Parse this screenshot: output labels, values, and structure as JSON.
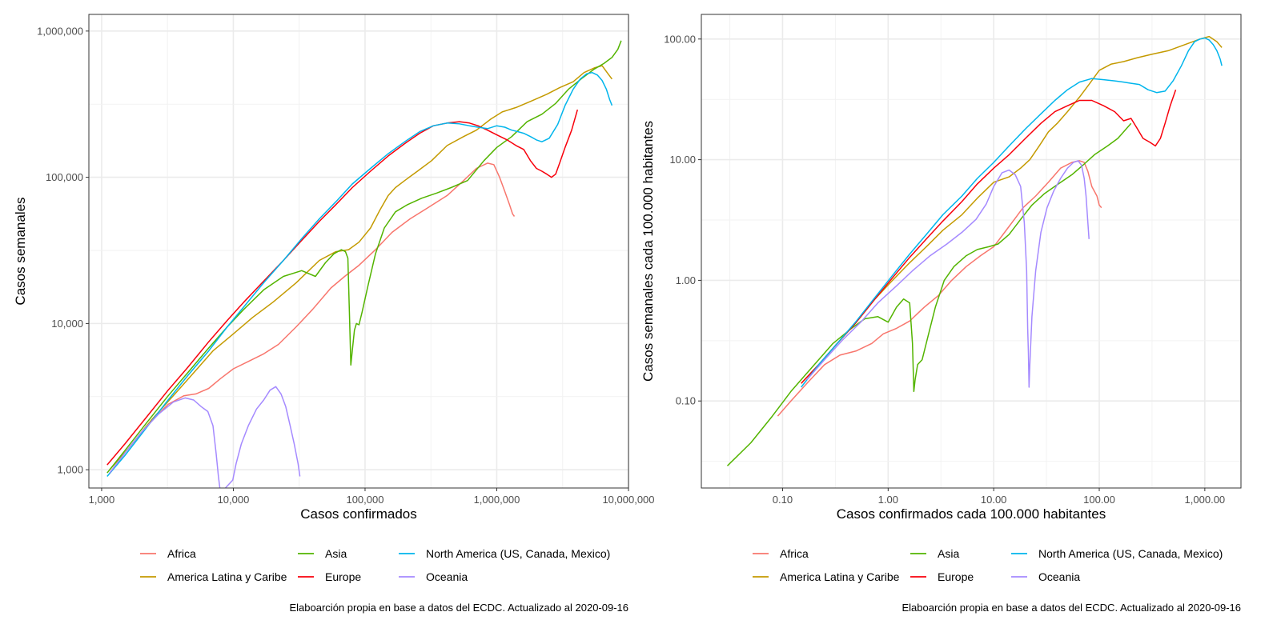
{
  "chart_data": [
    {
      "type": "line",
      "xlabel": "Casos confirmados",
      "ylabel": "Casos semanales",
      "x_scale": "log",
      "y_scale": "log",
      "xlim": [
        800,
        10000000
      ],
      "ylim": [
        750,
        1300000
      ],
      "x_ticks": [
        1000,
        10000,
        100000,
        1000000,
        10000000
      ],
      "x_tick_labels": [
        "1,000",
        "10,000",
        "100,000",
        "1,000,000",
        "10,000,000"
      ],
      "y_ticks": [
        1000,
        10000,
        100000,
        1000000
      ],
      "y_tick_labels": [
        "1,000",
        "10,000",
        "100,000",
        "1,000,000"
      ],
      "grid": true,
      "legend_position": "bottom",
      "caption": "Elaboarción propia en base a datos del ECDC.  Actualizado al  2020-09-16",
      "series": [
        {
          "name": "Africa",
          "color": "#f8766d",
          "x": [
            1150,
            1500,
            2200,
            3200,
            4200,
            5200,
            6500,
            8000,
            10000,
            13000,
            17000,
            22000,
            30000,
            40000,
            55000,
            70000,
            90000,
            120000,
            160000,
            220000,
            300000,
            420000,
            560000,
            700000,
            850000,
            950000,
            1050000,
            1150000,
            1250000,
            1320000,
            1360000
          ],
          "y": [
            940,
            1300,
            2000,
            2800,
            3200,
            3300,
            3600,
            4200,
            4900,
            5500,
            6200,
            7200,
            9500,
            12500,
            17500,
            21000,
            25000,
            32000,
            42000,
            52000,
            62000,
            75000,
            95000,
            115000,
            125000,
            122000,
            100000,
            80000,
            65000,
            56000,
            54000
          ]
        },
        {
          "name": "America Latina y Caribe",
          "color": "#c49a00",
          "x": [
            1150,
            1600,
            2400,
            3600,
            5000,
            7000,
            10000,
            14000,
            20000,
            30000,
            45000,
            60000,
            75000,
            90000,
            110000,
            130000,
            150000,
            170000,
            200000,
            250000,
            320000,
            420000,
            560000,
            700000,
            900000,
            1100000,
            1400000,
            1800000,
            2400000,
            3000000,
            3800000,
            4600000,
            5500000,
            6300000,
            7000000,
            7500000
          ],
          "y": [
            1000,
            1400,
            2200,
            3300,
            4600,
            6500,
            8500,
            11000,
            14000,
            19000,
            27000,
            31000,
            32000,
            36000,
            45000,
            60000,
            75000,
            85000,
            95000,
            110000,
            130000,
            165000,
            190000,
            210000,
            250000,
            280000,
            300000,
            330000,
            370000,
            410000,
            450000,
            520000,
            560000,
            580000,
            510000,
            470000
          ]
        },
        {
          "name": "Asia",
          "color": "#53b400",
          "x": [
            1100,
            1500,
            2200,
            3200,
            4500,
            6500,
            9000,
            12000,
            17000,
            24000,
            33000,
            42000,
            50000,
            58000,
            66000,
            71000,
            74000,
            76000,
            78000,
            80000,
            83000,
            86000,
            90000,
            95000,
            105000,
            120000,
            140000,
            170000,
            210000,
            270000,
            350000,
            450000,
            600000,
            800000,
            1000000,
            1300000,
            1700000,
            2200000,
            2800000,
            3500000,
            4500000,
            5500000,
            6500000,
            7500000,
            8300000,
            8800000
          ],
          "y": [
            950,
            1350,
            2100,
            3200,
            4600,
            6800,
            9500,
            12500,
            17000,
            21000,
            23000,
            21000,
            26000,
            30000,
            32000,
            31000,
            28000,
            12000,
            5200,
            6500,
            9000,
            10000,
            9800,
            12000,
            18000,
            30000,
            45000,
            58000,
            65000,
            72000,
            78000,
            85000,
            95000,
            130000,
            160000,
            190000,
            240000,
            270000,
            320000,
            400000,
            480000,
            550000,
            600000,
            660000,
            750000,
            860000
          ]
        },
        {
          "name": "Europe",
          "color": "#f8000b",
          "x": [
            1100,
            1500,
            2200,
            3200,
            4500,
            6500,
            9000,
            12000,
            17000,
            24000,
            33000,
            45000,
            60000,
            80000,
            110000,
            150000,
            200000,
            260000,
            330000,
            420000,
            520000,
            620000,
            720000,
            850000,
            1000000,
            1200000,
            1400000,
            1600000,
            1800000,
            2000000,
            2200000,
            2400000,
            2600000,
            2800000,
            3000000,
            3300000,
            3700000,
            4100000
          ],
          "y": [
            1080,
            1500,
            2300,
            3500,
            5000,
            7500,
            10500,
            14000,
            19500,
            27000,
            37000,
            50000,
            65000,
            85000,
            110000,
            140000,
            170000,
            200000,
            225000,
            235000,
            240000,
            235000,
            225000,
            210000,
            195000,
            180000,
            165000,
            155000,
            130000,
            115000,
            110000,
            105000,
            100000,
            105000,
            125000,
            160000,
            210000,
            290000
          ]
        },
        {
          "name": "North America (US, Canada, Mexico)",
          "color": "#00b5ec",
          "x": [
            1100,
            1500,
            2200,
            3200,
            4500,
            6500,
            9000,
            12000,
            17000,
            24000,
            33000,
            45000,
            60000,
            80000,
            110000,
            150000,
            200000,
            260000,
            330000,
            420000,
            520000,
            620000,
            720000,
            850000,
            1000000,
            1150000,
            1300000,
            1450000,
            1600000,
            1800000,
            2000000,
            2200000,
            2500000,
            2900000,
            3300000,
            3800000,
            4300000,
            4800000,
            5300000,
            5800000,
            6300000,
            6800000,
            7200000,
            7500000
          ],
          "y": [
            900,
            1250,
            1950,
            3000,
            4400,
            6500,
            9500,
            13000,
            19000,
            27000,
            38000,
            52000,
            68000,
            90000,
            115000,
            145000,
            175000,
            205000,
            225000,
            235000,
            232000,
            225000,
            220000,
            215000,
            225000,
            220000,
            210000,
            205000,
            200000,
            190000,
            180000,
            175000,
            185000,
            230000,
            310000,
            400000,
            470000,
            510000,
            520000,
            500000,
            460000,
            400000,
            340000,
            310000
          ]
        },
        {
          "name": "Oceania",
          "color": "#a58aff",
          "x": [
            1150,
            1500,
            2000,
            2700,
            3500,
            4300,
            5000,
            5700,
            6400,
            7000,
            7400,
            7700,
            7900,
            8100,
            9900,
            10500,
            11500,
            13000,
            15000,
            17000,
            19000,
            21000,
            23000,
            25000,
            27000,
            29000,
            31000,
            32000
          ],
          "y": [
            950,
            1300,
            1800,
            2400,
            2900,
            3100,
            3000,
            2700,
            2500,
            2000,
            1300,
            900,
            750,
            700,
            850,
            1100,
            1500,
            2000,
            2600,
            3000,
            3500,
            3700,
            3300,
            2700,
            2000,
            1500,
            1100,
            900
          ]
        }
      ]
    },
    {
      "type": "line",
      "xlabel": "Casos confirmados cada 100.000 habitantes",
      "ylabel": "Casos semanales cada 100.000 habitantes",
      "x_scale": "log",
      "y_scale": "log",
      "xlim": [
        0.017,
        2200
      ],
      "ylim": [
        0.019,
        160
      ],
      "x_ticks": [
        0.1,
        1,
        10,
        100,
        1000
      ],
      "x_tick_labels": [
        "0.10",
        "1.00",
        "10.00",
        "100.00",
        "1,000.00"
      ],
      "y_ticks": [
        0.1,
        1,
        10,
        100
      ],
      "y_tick_labels": [
        "0.10",
        "1.00",
        "10.00",
        "100.00"
      ],
      "grid": true,
      "legend_position": "bottom",
      "caption": "Elaboarción propia en base a datos del ECDC.  Actualizado al  2020-09-16",
      "series": [
        {
          "name": "Africa",
          "color": "#f8766d",
          "x": [
            0.09,
            0.12,
            0.17,
            0.25,
            0.35,
            0.5,
            0.7,
            0.9,
            1.2,
            1.6,
            2.2,
            3,
            4,
            5.5,
            7.5,
            10,
            14,
            19,
            25,
            33,
            43,
            55,
            65,
            72,
            78,
            85,
            95,
            100,
            105
          ],
          "y": [
            0.075,
            0.1,
            0.14,
            0.2,
            0.24,
            0.26,
            0.3,
            0.36,
            0.4,
            0.46,
            0.6,
            0.75,
            1.0,
            1.3,
            1.6,
            1.9,
            2.8,
            4,
            5,
            6.5,
            8.5,
            9.5,
            9.8,
            9.5,
            8,
            6,
            5,
            4.2,
            4
          ]
        },
        {
          "name": "America Latina y Caribe",
          "color": "#c49a00",
          "x": [
            0.15,
            0.22,
            0.33,
            0.5,
            0.75,
            1.1,
            1.6,
            2.3,
            3.3,
            5,
            7,
            10,
            14,
            18,
            22,
            27,
            33,
            40,
            50,
            65,
            80,
            100,
            130,
            170,
            230,
            320,
            450,
            650,
            900,
            1100,
            1300,
            1450
          ],
          "y": [
            0.14,
            0.2,
            0.3,
            0.45,
            0.7,
            1.0,
            1.4,
            1.9,
            2.6,
            3.5,
            4.8,
            6.5,
            7.2,
            8.5,
            10,
            13,
            17,
            20,
            25,
            33,
            42,
            55,
            62,
            65,
            70,
            75,
            80,
            90,
            100,
            105,
            95,
            85
          ]
        },
        {
          "name": "Asia",
          "color": "#53b400",
          "x": [
            0.03,
            0.05,
            0.08,
            0.12,
            0.2,
            0.3,
            0.45,
            0.6,
            0.8,
            1.0,
            1.2,
            1.4,
            1.6,
            1.7,
            1.75,
            1.8,
            1.9,
            2.1,
            2.4,
            2.8,
            3.4,
            4.2,
            5.5,
            7,
            9,
            11,
            14,
            18,
            23,
            30,
            40,
            55,
            70,
            90,
            120,
            150,
            200
          ],
          "y": [
            0.029,
            0.045,
            0.075,
            0.12,
            0.2,
            0.3,
            0.4,
            0.48,
            0.5,
            0.45,
            0.6,
            0.7,
            0.65,
            0.3,
            0.12,
            0.15,
            0.2,
            0.22,
            0.35,
            0.6,
            1.0,
            1.3,
            1.6,
            1.8,
            1.9,
            2.0,
            2.4,
            3.2,
            4.2,
            5.2,
            6.2,
            7.5,
            9,
            11,
            13,
            15,
            20
          ]
        },
        {
          "name": "Europe",
          "color": "#f8000b",
          "x": [
            0.15,
            0.22,
            0.33,
            0.5,
            0.75,
            1.1,
            1.6,
            2.3,
            3.3,
            5,
            7,
            10,
            14,
            20,
            28,
            38,
            50,
            65,
            85,
            110,
            140,
            170,
            200,
            230,
            260,
            300,
            340,
            380,
            420,
            470,
            530
          ],
          "y": [
            0.14,
            0.2,
            0.3,
            0.45,
            0.7,
            1.05,
            1.55,
            2.2,
            3.1,
            4.5,
            6.3,
            8.5,
            11,
            15,
            20,
            25,
            28,
            31,
            31,
            28,
            25,
            21,
            22,
            18,
            15,
            14,
            13,
            15,
            20,
            28,
            38
          ]
        },
        {
          "name": "North America (US, Canada, Mexico)",
          "color": "#00b5ec",
          "x": [
            0.15,
            0.22,
            0.33,
            0.5,
            0.75,
            1.1,
            1.6,
            2.3,
            3.3,
            5,
            7,
            10,
            14,
            20,
            28,
            38,
            50,
            65,
            85,
            110,
            140,
            170,
            200,
            240,
            290,
            350,
            420,
            500,
            600,
            700,
            800,
            900,
            1000,
            1100,
            1200,
            1300,
            1400,
            1450
          ],
          "y": [
            0.13,
            0.2,
            0.3,
            0.46,
            0.72,
            1.1,
            1.65,
            2.4,
            3.5,
            5,
            7,
            9.5,
            13,
            18,
            24,
            31,
            38,
            44,
            47,
            46,
            45,
            44,
            43,
            42,
            38,
            36,
            37,
            45,
            60,
            80,
            95,
            100,
            102,
            98,
            90,
            80,
            68,
            60
          ]
        },
        {
          "name": "Oceania",
          "color": "#a58aff",
          "x": [
            0.17,
            0.25,
            0.37,
            0.55,
            0.8,
            1.2,
            1.7,
            2.5,
            3.6,
            5,
            6.8,
            8.5,
            10,
            12,
            14,
            16,
            18,
            19.5,
            20.5,
            21,
            21.3,
            21.6,
            22,
            23,
            25,
            28,
            32,
            37,
            43,
            50,
            57,
            63,
            68,
            72,
            75,
            78,
            80
          ],
          "y": [
            0.15,
            0.22,
            0.32,
            0.45,
            0.65,
            0.9,
            1.2,
            1.6,
            2.0,
            2.5,
            3.2,
            4.3,
            6,
            7.8,
            8.2,
            7.5,
            6,
            3,
            1.2,
            0.4,
            0.25,
            0.13,
            0.2,
            0.5,
            1.2,
            2.5,
            4,
            5.5,
            7,
            8.5,
            9.5,
            9.8,
            9,
            7,
            5,
            3,
            2.2
          ]
        }
      ]
    }
  ]
}
